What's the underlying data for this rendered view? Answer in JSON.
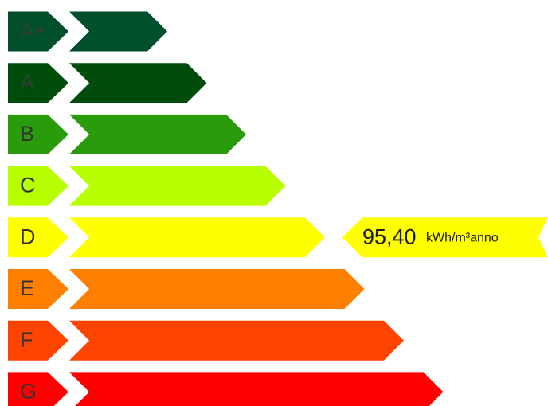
{
  "chart_data": {
    "type": "bar",
    "title": "",
    "xlabel": "",
    "ylabel": "",
    "categories": [
      "A+",
      "A",
      "B",
      "C",
      "D",
      "E",
      "F",
      "G"
    ],
    "colors": [
      "#004f2b",
      "#004d0b",
      "#2a9b0a",
      "#b8ff00",
      "#ffff00",
      "#ff7f00",
      "#ff4400",
      "#ff0000"
    ],
    "label_colors": [
      "#3a3a3a",
      "#3a3a3a",
      "#333333",
      "#333333",
      "#333333",
      "#333333",
      "#333333",
      "#333333"
    ],
    "selected_index": 4,
    "indicator": {
      "value": "95,40",
      "unit": "kWh/m³anno",
      "color": "#ffff00"
    }
  }
}
